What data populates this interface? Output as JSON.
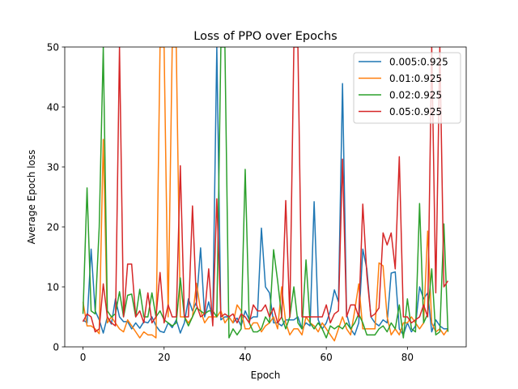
{
  "chart_data": {
    "type": "line",
    "title": "Loss of PPO over Epochs",
    "xlabel": "Epoch",
    "ylabel": "Average Epoch loss",
    "xlim": [
      -4.5,
      94.5
    ],
    "ylim": [
      0,
      50
    ],
    "xticks": [
      0,
      20,
      40,
      60,
      80
    ],
    "yticks": [
      0,
      10,
      20,
      30,
      40,
      50
    ],
    "grid": false,
    "legend_position": "top-right",
    "series": [
      {
        "name": "0.005:0.925",
        "color": "#1f77b4",
        "x": [
          0,
          1,
          2,
          3,
          4,
          5,
          6,
          7,
          8,
          9,
          10,
          11,
          12,
          13,
          14,
          15,
          16,
          17,
          18,
          19,
          20,
          21,
          22,
          23,
          24,
          25,
          26,
          27,
          28,
          29,
          30,
          31,
          32,
          33,
          34,
          35,
          36,
          37,
          38,
          39,
          40,
          41,
          42,
          43,
          44,
          45,
          46,
          47,
          48,
          49,
          50,
          51,
          52,
          53,
          54,
          55,
          56,
          57,
          58,
          59,
          60,
          61,
          62,
          63,
          64,
          65,
          66,
          67,
          68,
          69,
          70,
          71,
          72,
          73,
          74,
          75,
          76,
          77,
          78,
          79,
          80,
          81,
          82,
          83,
          84,
          85,
          86,
          87,
          88,
          89,
          90
        ],
        "values": [
          4.5,
          4,
          16.3,
          6,
          4.5,
          2.3,
          5,
          3.8,
          8,
          5,
          4.2,
          4.2,
          3,
          4,
          3.1,
          4.2,
          4,
          5,
          3.5,
          2.6,
          2.4,
          4,
          3.2,
          4.5,
          2.3,
          4,
          8,
          6,
          7.5,
          16.5,
          5,
          7.5,
          4.5,
          50,
          4.5,
          5,
          5,
          4,
          4.8,
          3.5,
          6,
          4.5,
          5,
          5,
          19.8,
          10,
          9,
          4,
          4,
          3.5,
          4.5,
          4.5,
          4.5,
          5,
          3,
          4,
          3.5,
          24.2,
          4.5,
          3,
          4,
          6,
          9.5,
          7.5,
          43.9,
          5.5,
          3,
          2,
          4,
          16.3,
          13,
          5,
          4,
          3.5,
          4.5,
          4,
          12.3,
          12.5,
          3,
          2,
          4,
          2.5,
          3.5,
          10,
          8,
          9,
          2.5,
          4.5,
          3.5,
          3,
          3
        ]
      },
      {
        "name": "0.01:0.925",
        "color": "#ff7f0e",
        "x": [
          0,
          1,
          2,
          3,
          4,
          5,
          6,
          7,
          8,
          9,
          10,
          11,
          12,
          13,
          14,
          15,
          16,
          17,
          18,
          19,
          20,
          21,
          22,
          23,
          24,
          25,
          26,
          27,
          28,
          29,
          30,
          31,
          32,
          33,
          34,
          35,
          36,
          37,
          38,
          39,
          40,
          41,
          42,
          43,
          44,
          45,
          46,
          47,
          48,
          49,
          50,
          51,
          52,
          53,
          54,
          55,
          56,
          57,
          58,
          59,
          60,
          61,
          62,
          63,
          64,
          65,
          66,
          67,
          68,
          69,
          70,
          71,
          72,
          73,
          74,
          75,
          76,
          77,
          78,
          79,
          80,
          81,
          82,
          83,
          84,
          85,
          86,
          87,
          88,
          89,
          90
        ],
        "values": [
          7.5,
          3.5,
          3.5,
          3,
          2.2,
          34.6,
          4,
          5,
          4,
          3,
          2.5,
          4.5,
          3.5,
          2.5,
          1.5,
          2.5,
          2,
          2,
          1.5,
          50,
          50,
          5,
          50,
          50,
          5,
          5,
          4,
          5,
          10.6,
          6,
          4,
          5,
          5,
          5,
          6,
          4,
          5,
          4,
          7,
          6,
          3,
          3,
          4,
          4,
          2.5,
          3.5,
          4,
          5,
          3,
          10,
          4,
          2,
          3,
          3,
          2,
          5,
          4,
          3.5,
          2.5,
          4,
          3,
          2,
          1,
          3,
          5,
          3,
          2,
          6,
          10.5,
          3,
          3,
          3,
          3,
          14,
          13.5,
          5,
          2,
          3,
          2,
          4,
          4,
          5,
          4,
          3,
          4,
          19.3,
          4,
          2.5,
          3,
          2,
          3
        ]
      },
      {
        "name": "0.02:0.925",
        "color": "#2ca02c",
        "x": [
          0,
          1,
          2,
          3,
          4,
          5,
          6,
          7,
          8,
          9,
          10,
          11,
          12,
          13,
          14,
          15,
          16,
          17,
          18,
          19,
          20,
          21,
          22,
          23,
          24,
          25,
          26,
          27,
          28,
          29,
          30,
          31,
          32,
          33,
          34,
          35,
          36,
          37,
          38,
          39,
          40,
          41,
          42,
          43,
          44,
          45,
          46,
          47,
          48,
          49,
          50,
          51,
          52,
          53,
          54,
          55,
          56,
          57,
          58,
          59,
          60,
          61,
          62,
          63,
          64,
          65,
          66,
          67,
          68,
          69,
          70,
          71,
          72,
          73,
          74,
          75,
          76,
          77,
          78,
          79,
          80,
          81,
          82,
          83,
          84,
          85,
          86,
          87,
          88,
          89,
          90
        ],
        "values": [
          5.5,
          26.5,
          6,
          5.5,
          20,
          50,
          6,
          5,
          5.5,
          9.2,
          5,
          8.6,
          8.8,
          5,
          9.6,
          5,
          5,
          9,
          5,
          6,
          4.5,
          4,
          3.5,
          4,
          11.5,
          5,
          3.5,
          5,
          6.5,
          6,
          5.5,
          6,
          6,
          5,
          50,
          50,
          1.5,
          3,
          2,
          3,
          29.6,
          4,
          2.5,
          2.5,
          3,
          5,
          4,
          16.2,
          11,
          5,
          3,
          5,
          10,
          4,
          3,
          14.5,
          4,
          3,
          4,
          3,
          1.5,
          3.5,
          3,
          3.5,
          3,
          4,
          3,
          4,
          5.5,
          4,
          2,
          2,
          2,
          3,
          3.5,
          2.5,
          4,
          3,
          7,
          1.5,
          8,
          3,
          2.5,
          23.9,
          4,
          5.5,
          13,
          2,
          2.5,
          20.5,
          2.5
        ]
      },
      {
        "name": "0.05:0.925",
        "color": "#d62728",
        "x": [
          0,
          1,
          2,
          3,
          4,
          5,
          6,
          7,
          8,
          9,
          10,
          11,
          12,
          13,
          14,
          15,
          16,
          17,
          18,
          19,
          20,
          21,
          22,
          23,
          24,
          25,
          26,
          27,
          28,
          29,
          30,
          31,
          32,
          33,
          34,
          35,
          36,
          37,
          38,
          39,
          40,
          41,
          42,
          43,
          44,
          45,
          46,
          47,
          48,
          49,
          50,
          51,
          52,
          53,
          54,
          55,
          56,
          57,
          58,
          59,
          60,
          61,
          62,
          63,
          64,
          65,
          66,
          67,
          68,
          69,
          70,
          71,
          72,
          73,
          74,
          75,
          76,
          77,
          78,
          79,
          80,
          81,
          82,
          83,
          84,
          85,
          86,
          87,
          88,
          89,
          90
        ],
        "values": [
          4.2,
          5.5,
          5,
          2.5,
          3,
          10.5,
          5,
          4,
          3.5,
          50,
          5,
          13.8,
          13.8,
          5,
          6,
          4,
          9,
          4,
          5,
          12.4,
          4,
          7,
          5,
          5,
          30.2,
          5,
          5,
          23.5,
          7,
          5,
          5.5,
          13,
          3.5,
          24.7,
          5,
          5.5,
          5,
          5.5,
          4,
          5.5,
          5,
          4,
          7,
          6,
          6,
          7,
          5,
          6.5,
          4,
          5,
          24.4,
          5,
          50,
          50,
          5,
          5,
          5,
          5,
          5,
          5,
          7,
          4,
          5.5,
          6,
          31.3,
          5,
          7,
          7,
          5,
          23.8,
          12,
          5,
          5.5,
          6.5,
          19,
          17,
          19,
          13,
          31.7,
          5,
          5,
          4,
          4.5,
          5,
          7,
          5,
          50,
          9,
          50,
          10,
          11
        ]
      }
    ]
  }
}
